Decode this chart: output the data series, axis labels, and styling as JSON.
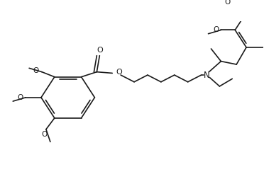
{
  "background_color": "#ffffff",
  "line_color": "#1a1a1a",
  "line_width": 1.2,
  "font_size": 7.0,
  "figsize": [
    3.72,
    2.7
  ],
  "dpi": 100,
  "xlim": [
    0,
    372
  ],
  "ylim": [
    0,
    270
  ]
}
